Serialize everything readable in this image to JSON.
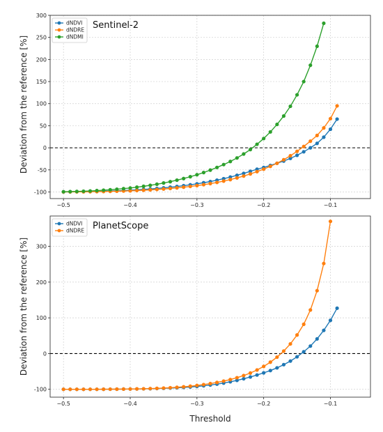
{
  "chart_data": [
    {
      "type": "line",
      "title": "Sentinel-2",
      "ylabel": "Deviation from the reference [%]",
      "xlabel": "",
      "xlim": [
        -0.52,
        -0.04
      ],
      "ylim": [
        -115,
        300
      ],
      "xticks": [
        -0.5,
        -0.4,
        -0.3,
        -0.2,
        -0.1
      ],
      "xtick_labels": [
        "−0.5",
        "−0.4",
        "−0.3",
        "−0.2",
        "−0.1"
      ],
      "yticks": [
        -100,
        -50,
        0,
        50,
        100,
        150,
        200,
        250,
        300
      ],
      "grid": true,
      "legend_position": "top-left",
      "reference_line": 0,
      "series": [
        {
          "name": "dNDVI",
          "color": "#1f77b4",
          "x0": -0.5,
          "dx": 0.01,
          "values": [
            -99.8,
            -99.7,
            -99.5,
            -99.3,
            -99,
            -98.7,
            -98.3,
            -97.8,
            -97.3,
            -96.7,
            -96,
            -95.2,
            -94.3,
            -93.2,
            -92,
            -90.7,
            -89.2,
            -87.6,
            -85.8,
            -83.8,
            -81.6,
            -79.1,
            -76.4,
            -73.3,
            -70,
            -66.3,
            -62.3,
            -57.9,
            -53.3,
            -48.5,
            -44.5,
            -40,
            -35,
            -30,
            -24,
            -17,
            -9,
            0,
            10,
            24,
            42,
            65
          ]
        },
        {
          "name": "dNDRE",
          "color": "#ff7f0e",
          "x0": -0.5,
          "dx": 0.01,
          "values": [
            -99.9,
            -99.8,
            -99.7,
            -99.6,
            -99.4,
            -99.2,
            -99,
            -98.7,
            -98.3,
            -97.9,
            -97.4,
            -96.8,
            -96.1,
            -95.3,
            -94.4,
            -93.3,
            -92.1,
            -90.7,
            -89.2,
            -87.5,
            -85.6,
            -83.5,
            -81.1,
            -78.4,
            -75.4,
            -72,
            -68.2,
            -64,
            -59.2,
            -54,
            -48.3,
            -42,
            -35,
            -27,
            -18,
            -8,
            3,
            15,
            28,
            45,
            66,
            95
          ]
        },
        {
          "name": "dNDMI",
          "color": "#2ca02c",
          "x0": -0.5,
          "dx": 0.01,
          "values": [
            -99.5,
            -99.2,
            -98.8,
            -98.3,
            -97.7,
            -96.9,
            -96,
            -95,
            -93.8,
            -92.5,
            -91,
            -89.2,
            -87.2,
            -85,
            -82.5,
            -79.7,
            -76.7,
            -73.3,
            -69.6,
            -65.5,
            -61,
            -56,
            -50.5,
            -44.5,
            -38,
            -31,
            -23,
            -14,
            -4,
            8,
            21,
            36,
            53,
            72,
            94,
            120,
            150,
            187,
            230,
            282
          ]
        }
      ]
    },
    {
      "type": "line",
      "title": "PlanetScope",
      "ylabel": "Deviation from the reference [%]",
      "xlabel": "Threshold",
      "xlim": [
        -0.52,
        -0.04
      ],
      "ylim": [
        -122,
        385
      ],
      "xticks": [
        -0.5,
        -0.4,
        -0.3,
        -0.2,
        -0.1
      ],
      "xtick_labels": [
        "−0.5",
        "−0.4",
        "−0.3",
        "−0.2",
        "−0.1"
      ],
      "yticks": [
        -100,
        0,
        100,
        200,
        300
      ],
      "grid": true,
      "legend_position": "top-left",
      "reference_line": 0,
      "series": [
        {
          "name": "dNDVI",
          "color": "#1f77b4",
          "x0": -0.5,
          "dx": 0.01,
          "values": [
            -100,
            -100,
            -100,
            -100,
            -99.9,
            -99.9,
            -99.8,
            -99.7,
            -99.6,
            -99.4,
            -99.2,
            -99,
            -98.7,
            -98.3,
            -97.8,
            -97.2,
            -96.5,
            -95.7,
            -94.7,
            -93.5,
            -92,
            -90.2,
            -88,
            -85.5,
            -82.5,
            -79,
            -75,
            -70.5,
            -65.5,
            -60,
            -54,
            -47.5,
            -40,
            -31,
            -21,
            -9,
            5,
            21,
            41,
            65,
            93,
            127
          ]
        },
        {
          "name": "dNDRE",
          "color": "#ff7f0e",
          "x0": -0.5,
          "dx": 0.01,
          "values": [
            -100,
            -100,
            -100,
            -100,
            -99.9,
            -99.9,
            -99.8,
            -99.7,
            -99.6,
            -99.4,
            -99.2,
            -98.9,
            -98.5,
            -98,
            -97.4,
            -96.6,
            -95.6,
            -94.4,
            -93,
            -91.3,
            -89.2,
            -86.8,
            -84,
            -80.8,
            -77,
            -72.7,
            -67.5,
            -61.5,
            -54.5,
            -46,
            -36,
            -24,
            -10,
            7,
            27,
            52,
            82,
            122,
            176,
            252,
            370
          ]
        }
      ]
    }
  ]
}
